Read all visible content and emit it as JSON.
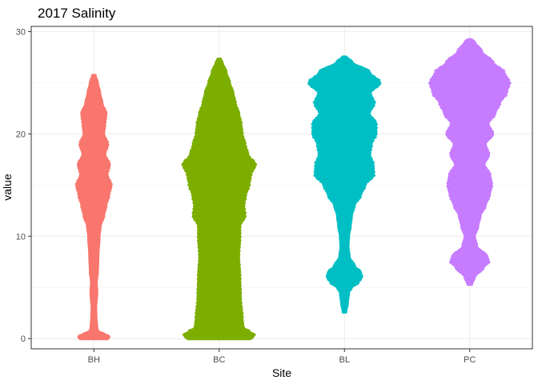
{
  "chart_data": {
    "type": "violin",
    "title": "2017 Salinity",
    "xlabel": "Site",
    "ylabel": "value",
    "categories": [
      "BH",
      "BC",
      "BL",
      "PC"
    ],
    "ylim": [
      -1.0,
      30.5
    ],
    "yticks": [
      0,
      10,
      20,
      30
    ],
    "grid": true,
    "legend": "none",
    "colors": [
      "#F8766D",
      "#7CAE00",
      "#00BFC4",
      "#C77CFF"
    ],
    "series": [
      {
        "category": "BH",
        "color": "#F8766D",
        "min": 0.0,
        "max": 25.7,
        "profile": [
          [
            0.0,
            0.24
          ],
          [
            0.2,
            0.27
          ],
          [
            0.4,
            0.18
          ],
          [
            0.7,
            0.07
          ],
          [
            1.0,
            0.05
          ],
          [
            2.0,
            0.035
          ],
          [
            3.0,
            0.03
          ],
          [
            4.5,
            0.05
          ],
          [
            5.5,
            0.04
          ],
          [
            6.5,
            0.06
          ],
          [
            8.0,
            0.07
          ],
          [
            10.0,
            0.09
          ],
          [
            11.0,
            0.11
          ],
          [
            12.0,
            0.17
          ],
          [
            13.0,
            0.21
          ],
          [
            14.0,
            0.26
          ],
          [
            15.0,
            0.3
          ],
          [
            16.0,
            0.23
          ],
          [
            17.0,
            0.27
          ],
          [
            18.0,
            0.19
          ],
          [
            19.0,
            0.24
          ],
          [
            20.0,
            0.17
          ],
          [
            21.0,
            0.19
          ],
          [
            22.0,
            0.21
          ],
          [
            23.0,
            0.14
          ],
          [
            24.0,
            0.1
          ],
          [
            25.0,
            0.06
          ],
          [
            25.7,
            0.02
          ]
        ]
      },
      {
        "category": "BC",
        "color": "#7CAE00",
        "min": 0.0,
        "max": 27.3,
        "profile": [
          [
            0.0,
            0.55
          ],
          [
            0.3,
            0.62
          ],
          [
            0.7,
            0.52
          ],
          [
            1.0,
            0.42
          ],
          [
            2.0,
            0.4
          ],
          [
            4.0,
            0.37
          ],
          [
            6.0,
            0.36
          ],
          [
            8.0,
            0.34
          ],
          [
            10.0,
            0.36
          ],
          [
            11.0,
            0.36
          ],
          [
            12.0,
            0.45
          ],
          [
            13.0,
            0.43
          ],
          [
            14.0,
            0.46
          ],
          [
            15.0,
            0.52
          ],
          [
            16.0,
            0.55
          ],
          [
            17.0,
            0.63
          ],
          [
            18.0,
            0.5
          ],
          [
            19.0,
            0.45
          ],
          [
            20.0,
            0.4
          ],
          [
            21.0,
            0.38
          ],
          [
            22.0,
            0.34
          ],
          [
            23.0,
            0.28
          ],
          [
            24.0,
            0.24
          ],
          [
            25.0,
            0.18
          ],
          [
            26.0,
            0.12
          ],
          [
            27.0,
            0.05
          ],
          [
            27.3,
            0.01
          ]
        ]
      },
      {
        "category": "BL",
        "color": "#00BFC4",
        "min": 2.6,
        "max": 27.5,
        "profile": [
          [
            2.6,
            0.02
          ],
          [
            3.5,
            0.05
          ],
          [
            4.5,
            0.07
          ],
          [
            5.0,
            0.12
          ],
          [
            5.5,
            0.24
          ],
          [
            6.0,
            0.3
          ],
          [
            6.5,
            0.28
          ],
          [
            7.0,
            0.18
          ],
          [
            8.0,
            0.08
          ],
          [
            9.0,
            0.06
          ],
          [
            10.0,
            0.07
          ],
          [
            11.0,
            0.1
          ],
          [
            12.0,
            0.12
          ],
          [
            13.0,
            0.17
          ],
          [
            14.0,
            0.28
          ],
          [
            15.0,
            0.36
          ],
          [
            16.0,
            0.51
          ],
          [
            17.0,
            0.5
          ],
          [
            18.0,
            0.44
          ],
          [
            19.0,
            0.47
          ],
          [
            20.0,
            0.55
          ],
          [
            21.0,
            0.55
          ],
          [
            22.0,
            0.43
          ],
          [
            23.0,
            0.52
          ],
          [
            24.0,
            0.45
          ],
          [
            25.0,
            0.62
          ],
          [
            26.0,
            0.44
          ],
          [
            27.0,
            0.13
          ],
          [
            27.5,
            0.03
          ]
        ]
      },
      {
        "category": "PC",
        "color": "#C77CFF",
        "min": 5.3,
        "max": 29.2,
        "profile": [
          [
            5.3,
            0.03
          ],
          [
            6.0,
            0.08
          ],
          [
            7.0,
            0.24
          ],
          [
            7.5,
            0.33
          ],
          [
            8.0,
            0.3
          ],
          [
            9.0,
            0.12
          ],
          [
            10.0,
            0.08
          ],
          [
            11.0,
            0.14
          ],
          [
            12.0,
            0.18
          ],
          [
            13.0,
            0.27
          ],
          [
            14.0,
            0.34
          ],
          [
            15.0,
            0.38
          ],
          [
            16.0,
            0.35
          ],
          [
            17.0,
            0.25
          ],
          [
            18.0,
            0.33
          ],
          [
            19.0,
            0.27
          ],
          [
            20.0,
            0.4
          ],
          [
            21.0,
            0.32
          ],
          [
            22.0,
            0.44
          ],
          [
            23.0,
            0.52
          ],
          [
            24.0,
            0.64
          ],
          [
            25.0,
            0.69
          ],
          [
            26.0,
            0.6
          ],
          [
            27.0,
            0.4
          ],
          [
            28.0,
            0.21
          ],
          [
            29.0,
            0.08
          ],
          [
            29.2,
            0.02
          ]
        ]
      }
    ]
  }
}
